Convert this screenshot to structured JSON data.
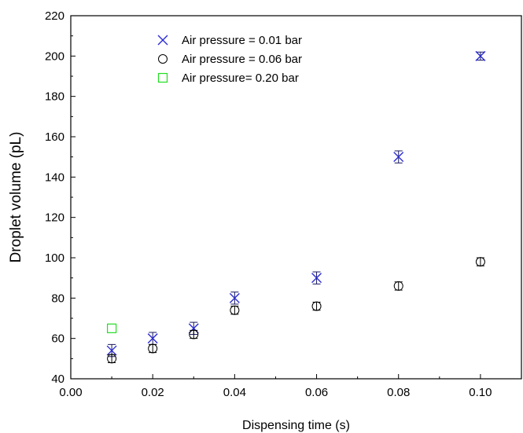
{
  "chart_data": {
    "type": "scatter",
    "title": "",
    "xlabel": "Dispensing time (s)",
    "ylabel": "Droplet volume (pL)",
    "xlim": [
      0.0,
      0.11
    ],
    "ylim": [
      40,
      220
    ],
    "xticks": [
      0.0,
      0.02,
      0.04,
      0.06,
      0.08,
      0.1
    ],
    "xtick_labels": [
      "0.00",
      "0.02",
      "0.04",
      "0.06",
      "0.08",
      "0.10"
    ],
    "yticks": [
      40,
      60,
      80,
      100,
      120,
      140,
      160,
      180,
      200,
      220
    ],
    "ytick_labels": [
      "40",
      "60",
      "80",
      "100",
      "120",
      "140",
      "160",
      "180",
      "200",
      "220"
    ],
    "grid": false,
    "legend_position": "top-left",
    "series": [
      {
        "name": "Air pressure = 0.01 bar",
        "marker": "x",
        "color": "#2b2bd6",
        "x": [
          0.01,
          0.02,
          0.03,
          0.04,
          0.06,
          0.08,
          0.1
        ],
        "y": [
          54,
          60,
          65,
          80,
          90,
          150,
          200
        ],
        "err": [
          3,
          3,
          3,
          3,
          3,
          3,
          2
        ]
      },
      {
        "name": "Air pressure = 0.06 bar",
        "marker": "circle",
        "color": "#000000",
        "x": [
          0.01,
          0.02,
          0.03,
          0.04,
          0.06,
          0.08,
          0.1
        ],
        "y": [
          50,
          55,
          62,
          74,
          76,
          86,
          98
        ],
        "err": [
          2,
          2,
          2,
          2,
          2,
          2,
          2
        ]
      },
      {
        "name": "Air pressure= 0.20 bar",
        "marker": "square",
        "color": "#22dd22",
        "x": [
          0.01
        ],
        "y": [
          65
        ],
        "err": [
          0
        ]
      }
    ]
  }
}
